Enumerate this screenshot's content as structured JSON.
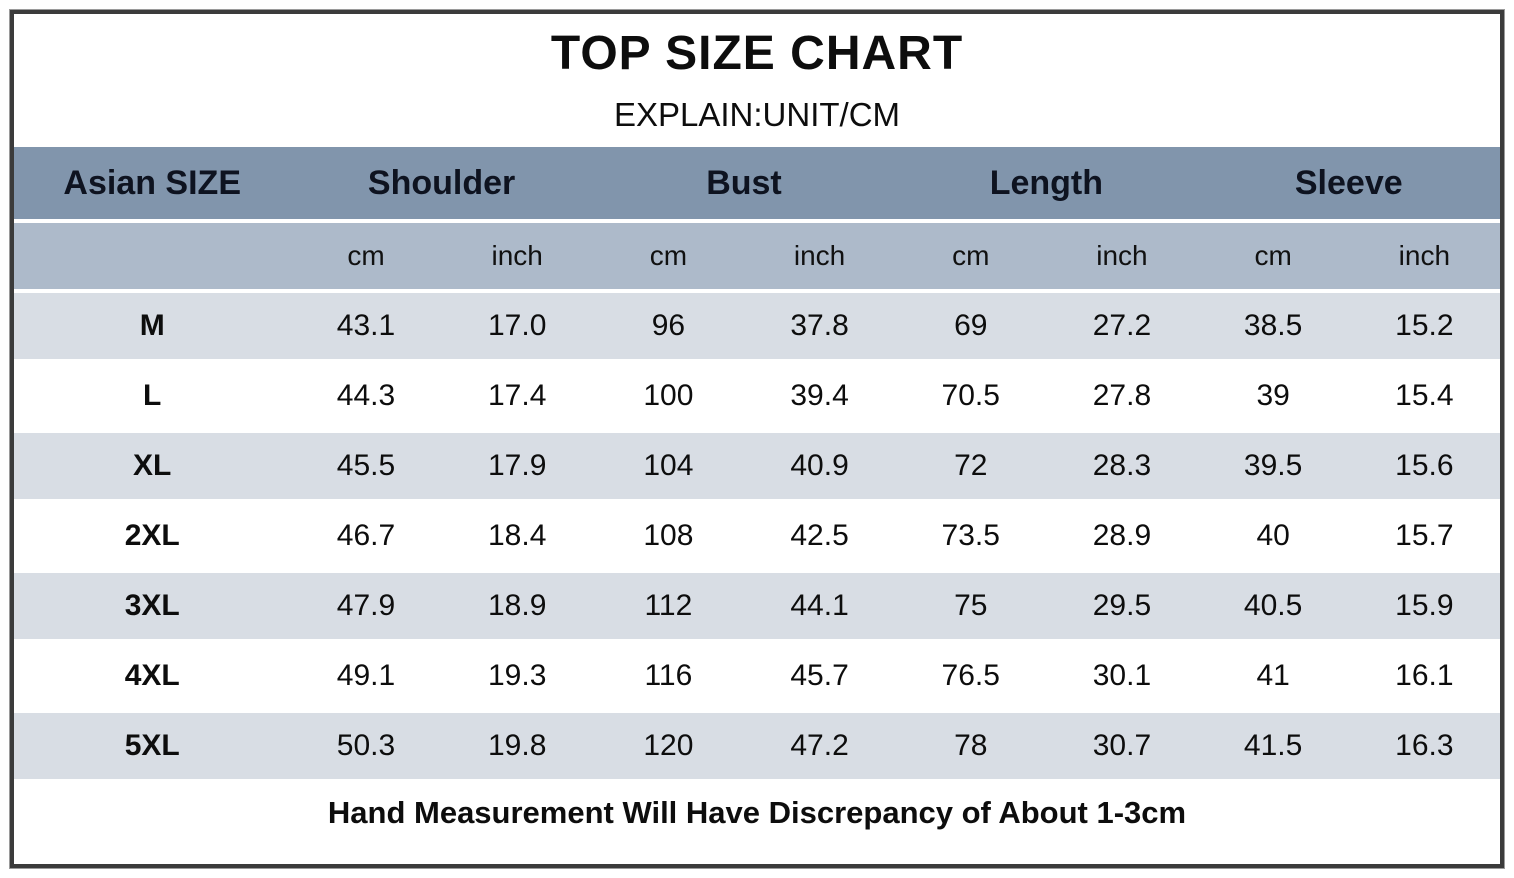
{
  "title": "TOP SIZE CHART",
  "subtitle": "EXPLAIN:UNIT/CM",
  "colors": {
    "group_header_bg": "#8195ac",
    "unit_header_bg": "#adbaca",
    "stripe_row_bg": "#d8dde4",
    "plain_row_bg": "#ffffff",
    "frame_border": "#3b3b3b",
    "text": "#0d0d0d"
  },
  "chart_data": {
    "type": "table",
    "title": "TOP SIZE CHART",
    "unit_note": "EXPLAIN:UNIT/CM",
    "group_headers": {
      "size": "Asian SIZE",
      "shoulder": "Shoulder",
      "bust": "Bust",
      "length": "Length",
      "sleeve": "Sleeve"
    },
    "unit_headers": {
      "blank": "",
      "cm": "cm",
      "inch": "inch"
    },
    "columns_per_group": 2,
    "rows": [
      {
        "size": "M",
        "values": [
          "43.1",
          "17.0",
          "96",
          "37.8",
          "69",
          "27.2",
          "38.5",
          "15.2"
        ]
      },
      {
        "size": "L",
        "values": [
          "44.3",
          "17.4",
          "100",
          "39.4",
          "70.5",
          "27.8",
          "39",
          "15.4"
        ]
      },
      {
        "size": "XL",
        "values": [
          "45.5",
          "17.9",
          "104",
          "40.9",
          "72",
          "28.3",
          "39.5",
          "15.6"
        ]
      },
      {
        "size": "2XL",
        "values": [
          "46.7",
          "18.4",
          "108",
          "42.5",
          "73.5",
          "28.9",
          "40",
          "15.7"
        ]
      },
      {
        "size": "3XL",
        "values": [
          "47.9",
          "18.9",
          "112",
          "44.1",
          "75",
          "29.5",
          "40.5",
          "15.9"
        ]
      },
      {
        "size": "4XL",
        "values": [
          "49.1",
          "19.3",
          "116",
          "45.7",
          "76.5",
          "30.1",
          "41",
          "16.1"
        ]
      },
      {
        "size": "5XL",
        "values": [
          "50.3",
          "19.8",
          "120",
          "47.2",
          "78",
          "30.7",
          "41.5",
          "16.3"
        ]
      }
    ],
    "footnote": "Hand Measurement Will Have Discrepancy of About 1-3cm"
  }
}
